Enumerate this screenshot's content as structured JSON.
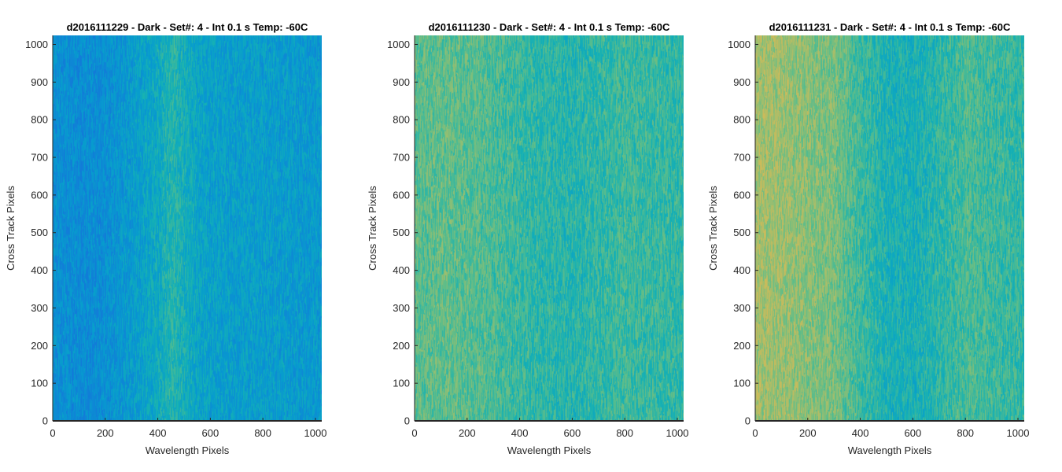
{
  "chart_data": [
    {
      "type": "heatmap",
      "title": "d2016111229 - Dark - Set#: 4 - Int 0.1 s Temp: -60C",
      "xlabel": "Wavelength Pixels",
      "ylabel": "Cross Track Pixels",
      "xlim": [
        0,
        1024
      ],
      "ylim": [
        0,
        1024
      ],
      "x_ticks": [
        0,
        200,
        400,
        600,
        800,
        1000
      ],
      "y_ticks": [
        0,
        100,
        200,
        300,
        400,
        500,
        600,
        700,
        800,
        900,
        1000
      ],
      "colormap": "parula",
      "profile_columns": [
        0,
        100,
        200,
        300,
        400,
        450,
        500,
        550,
        600,
        700,
        800,
        900,
        1024
      ],
      "profile_values": [
        0.38,
        0.36,
        0.37,
        0.42,
        0.48,
        0.54,
        0.5,
        0.46,
        0.44,
        0.43,
        0.43,
        0.42,
        0.41
      ]
    },
    {
      "type": "heatmap",
      "title": "d2016111230 - Dark - Set#: 4 - Int 0.1 s Temp: -60C",
      "xlabel": "Wavelength Pixels",
      "ylabel": "Cross Track Pixels",
      "xlim": [
        0,
        1024
      ],
      "ylim": [
        0,
        1024
      ],
      "x_ticks": [
        0,
        200,
        400,
        600,
        800,
        1000
      ],
      "y_ticks": [
        0,
        100,
        200,
        300,
        400,
        500,
        600,
        700,
        800,
        900,
        1000
      ],
      "colormap": "parula",
      "profile_columns": [
        0,
        100,
        200,
        300,
        400,
        500,
        600,
        700,
        800,
        900,
        1024
      ],
      "profile_values": [
        0.62,
        0.63,
        0.62,
        0.6,
        0.57,
        0.55,
        0.54,
        0.56,
        0.58,
        0.57,
        0.56
      ]
    },
    {
      "type": "heatmap",
      "title": "d2016111231 - Dark - Set#: 4 - Int 0.1 s Temp: -60C",
      "xlabel": "Wavelength Pixels",
      "ylabel": "Cross Track Pixels",
      "xlim": [
        0,
        1024
      ],
      "ylim": [
        0,
        1024
      ],
      "x_ticks": [
        0,
        200,
        400,
        600,
        800,
        1000
      ],
      "y_ticks": [
        0,
        100,
        200,
        300,
        400,
        500,
        600,
        700,
        800,
        900,
        1000
      ],
      "colormap": "parula",
      "profile_columns": [
        0,
        100,
        200,
        300,
        400,
        500,
        600,
        700,
        800,
        900,
        1024
      ],
      "profile_values": [
        0.72,
        0.71,
        0.68,
        0.66,
        0.58,
        0.52,
        0.51,
        0.55,
        0.6,
        0.58,
        0.56
      ]
    }
  ]
}
